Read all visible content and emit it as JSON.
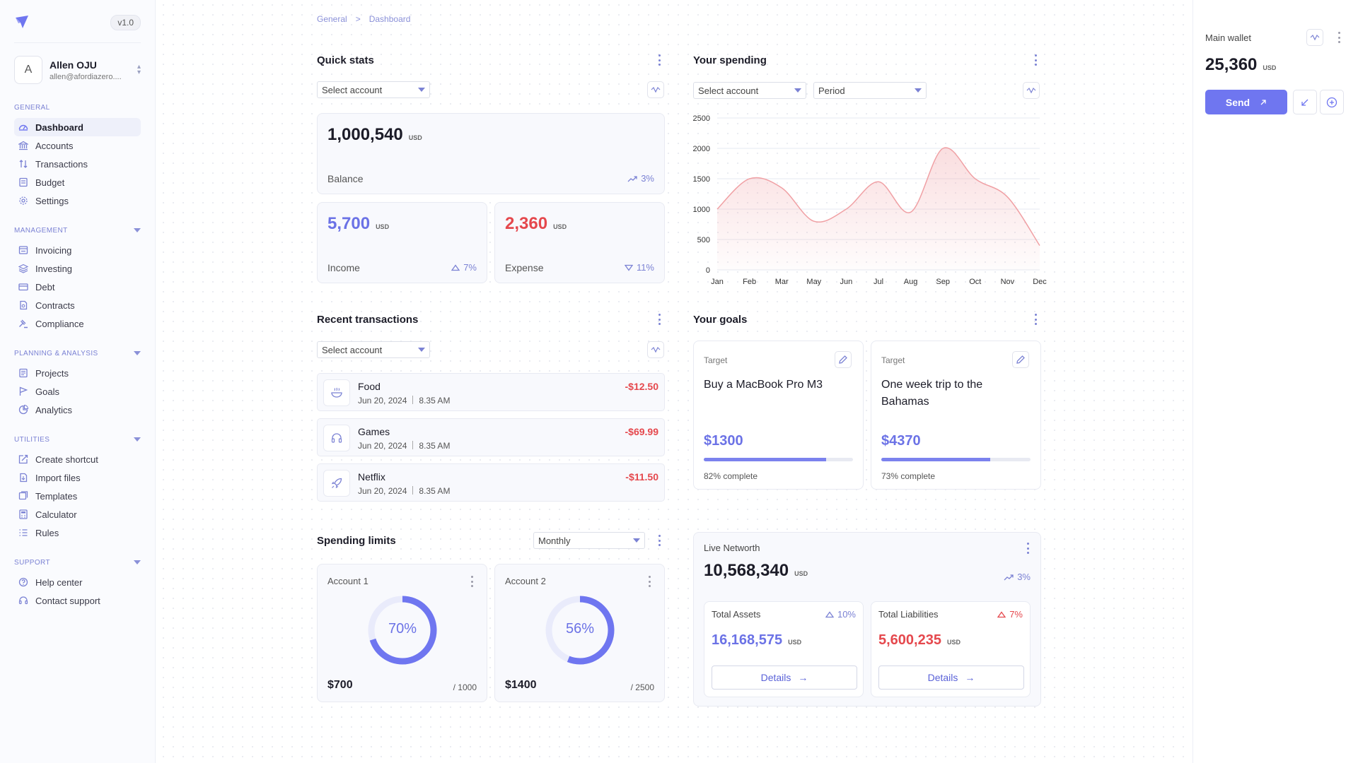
{
  "app": {
    "version": "v1.0"
  },
  "user": {
    "initial": "A",
    "name": "Allen OJU",
    "email": "allen@afordiazero...."
  },
  "nav": {
    "general": {
      "heading": "GENERAL",
      "items": [
        {
          "label": "Dashboard",
          "icon": "dashboard-icon"
        },
        {
          "label": "Accounts",
          "icon": "bank-icon"
        },
        {
          "label": "Transactions",
          "icon": "transfer-icon"
        },
        {
          "label": "Budget",
          "icon": "budget-icon"
        },
        {
          "label": "Settings",
          "icon": "gear-icon"
        }
      ]
    },
    "management": {
      "heading": "MANAGEMENT",
      "items": [
        {
          "label": "Invoicing",
          "icon": "invoice-icon"
        },
        {
          "label": "Investing",
          "icon": "layers-icon"
        },
        {
          "label": "Debt",
          "icon": "card-icon"
        },
        {
          "label": "Contracts",
          "icon": "contract-icon"
        },
        {
          "label": "Compliance",
          "icon": "gavel-icon"
        }
      ]
    },
    "planning": {
      "heading": "PLANNING & ANALYSIS",
      "items": [
        {
          "label": "Projects",
          "icon": "projects-icon"
        },
        {
          "label": "Goals",
          "icon": "flag-icon"
        },
        {
          "label": "Analytics",
          "icon": "analytics-icon"
        }
      ]
    },
    "utilities": {
      "heading": "UTILITIES",
      "items": [
        {
          "label": "Create shortcut",
          "icon": "shortcut-icon"
        },
        {
          "label": "Import files",
          "icon": "import-icon"
        },
        {
          "label": "Templates",
          "icon": "templates-icon"
        },
        {
          "label": "Calculator",
          "icon": "calculator-icon"
        },
        {
          "label": "Rules",
          "icon": "rules-icon"
        }
      ]
    },
    "support": {
      "heading": "SUPPORT",
      "items": [
        {
          "label": "Help center",
          "icon": "help-icon"
        },
        {
          "label": "Contact support",
          "icon": "headset-icon"
        }
      ]
    }
  },
  "breadcrumb": {
    "first": "General",
    "sep": ">",
    "second": "Dashboard"
  },
  "quick_stats": {
    "title": "Quick stats",
    "select_placeholder": "Select account",
    "balance": {
      "value": "1,000,540",
      "unit": "USD",
      "label": "Balance",
      "trend": "3%"
    },
    "income": {
      "value": "5,700",
      "unit": "USD",
      "label": "Income",
      "trend": "7%"
    },
    "expense": {
      "value": "2,360",
      "unit": "USD",
      "label": "Expense",
      "trend": "11%"
    }
  },
  "spending": {
    "title": "Your spending",
    "select_placeholder": "Select account",
    "period_placeholder": "Period"
  },
  "chart_data": {
    "type": "area",
    "categories": [
      "Jan",
      "Feb",
      "Mar",
      "May",
      "Jun",
      "Jul",
      "Aug",
      "Sep",
      "Oct",
      "Nov",
      "Dec"
    ],
    "values": [
      1000,
      1500,
      1350,
      800,
      1000,
      1450,
      950,
      2000,
      1500,
      1200,
      400
    ],
    "ylim": [
      0,
      2500
    ],
    "yticks": [
      0,
      500,
      1000,
      1500,
      2000,
      2500
    ],
    "grid": true,
    "color": "#f0a0a4"
  },
  "recent": {
    "title": "Recent transactions",
    "select_placeholder": "Select account",
    "items": [
      {
        "name": "Food",
        "date": "Jun 20, 2024",
        "time": "8.35 AM",
        "amount": "-$12.50",
        "icon": "food-bowl-icon"
      },
      {
        "name": "Games",
        "date": "Jun 20, 2024",
        "time": "8.35 AM",
        "amount": "-$69.99",
        "icon": "headphones-icon"
      },
      {
        "name": "Netflix",
        "date": "Jun 20, 2024",
        "time": "8.35 AM",
        "amount": "-$11.50",
        "icon": "rocket-icon"
      }
    ]
  },
  "goals": {
    "title": "Your goals",
    "items": [
      {
        "target_label": "Target",
        "text": "Buy a MacBook Pro M3",
        "amount": "$1300",
        "progress": 0.82,
        "pct_text": "82% complete"
      },
      {
        "target_label": "Target",
        "text": "One week trip to the Bahamas",
        "amount": "$4370",
        "progress": 0.73,
        "pct_text": "73% complete"
      }
    ]
  },
  "limits": {
    "title": "Spending limits",
    "period": "Monthly",
    "accounts": [
      {
        "name": "Account 1",
        "percent": 0.7,
        "percent_text": "70%",
        "amount": "$700",
        "limit": "/ 1000"
      },
      {
        "name": "Account 2",
        "percent": 0.56,
        "percent_text": "56%",
        "amount": "$1400",
        "limit": "/ 2500"
      }
    ]
  },
  "networth": {
    "title": "Live Networth",
    "value": "10,568,340",
    "unit": "USD",
    "trend": "3%",
    "assets": {
      "label": "Total Assets",
      "trend": "10%",
      "value": "16,168,575",
      "unit": "USD",
      "button": "Details"
    },
    "liabilities": {
      "label": "Total Liabilities",
      "trend": "7%",
      "value": "5,600,235",
      "unit": "USD",
      "button": "Details"
    }
  },
  "wallet": {
    "title": "Main wallet",
    "value": "25,360",
    "unit": "USD",
    "send_label": "Send"
  },
  "colors": {
    "accent": "#6f76f0",
    "negative": "#e5484d"
  }
}
